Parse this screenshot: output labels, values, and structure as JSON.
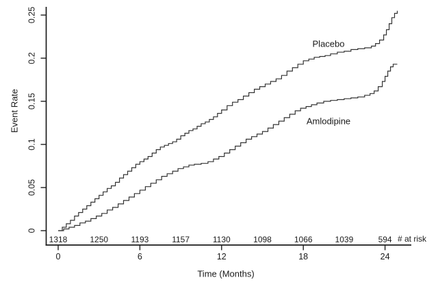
{
  "chart_data": {
    "type": "line",
    "subtype": "kaplan-meier-step",
    "title": "",
    "xlabel": "Time (Months)",
    "ylabel": "Event Rate",
    "xlim": [
      0,
      25.5
    ],
    "ylim": [
      0,
      0.26
    ],
    "x_ticks": [
      0,
      6,
      12,
      18,
      24
    ],
    "x_tick_labels": [
      "0",
      "6",
      "12",
      "18",
      "24"
    ],
    "y_ticks": [
      0,
      0.05,
      0.1,
      0.15,
      0.2,
      0.25
    ],
    "y_tick_labels": [
      "0",
      "0.05",
      "0.1",
      "0.15",
      "0.2",
      "0.25"
    ],
    "grid": false,
    "legend_position": "inline-annotations",
    "line_color": "#333333",
    "axis_color": "#1c1c1c",
    "series": [
      {
        "name": "Placebo",
        "label": {
          "text": "Placebo",
          "x": 19.85,
          "y": 0.2165
        },
        "points": [
          [
            0,
            0
          ],
          [
            0.3,
            0.004
          ],
          [
            0.6,
            0.008
          ],
          [
            0.9,
            0.012
          ],
          [
            1.2,
            0.017
          ],
          [
            1.5,
            0.021
          ],
          [
            1.8,
            0.025
          ],
          [
            2.1,
            0.029
          ],
          [
            2.4,
            0.033
          ],
          [
            2.7,
            0.037
          ],
          [
            3.0,
            0.041
          ],
          [
            3.3,
            0.045
          ],
          [
            3.6,
            0.049
          ],
          [
            3.9,
            0.052
          ],
          [
            4.2,
            0.056
          ],
          [
            4.5,
            0.061
          ],
          [
            4.8,
            0.065
          ],
          [
            5.1,
            0.069
          ],
          [
            5.4,
            0.073
          ],
          [
            5.7,
            0.077
          ],
          [
            6.0,
            0.08
          ],
          [
            6.3,
            0.083
          ],
          [
            6.6,
            0.086
          ],
          [
            6.9,
            0.09
          ],
          [
            7.2,
            0.094
          ],
          [
            7.5,
            0.097
          ],
          [
            7.8,
            0.099
          ],
          [
            8.1,
            0.101
          ],
          [
            8.4,
            0.103
          ],
          [
            8.7,
            0.106
          ],
          [
            9.0,
            0.11
          ],
          [
            9.3,
            0.113
          ],
          [
            9.6,
            0.116
          ],
          [
            9.9,
            0.118
          ],
          [
            10.2,
            0.121
          ],
          [
            10.5,
            0.124
          ],
          [
            10.8,
            0.126
          ],
          [
            11.1,
            0.129
          ],
          [
            11.4,
            0.132
          ],
          [
            11.7,
            0.136
          ],
          [
            12.0,
            0.14
          ],
          [
            12.4,
            0.145
          ],
          [
            12.8,
            0.149
          ],
          [
            13.2,
            0.152
          ],
          [
            13.6,
            0.156
          ],
          [
            14.0,
            0.16
          ],
          [
            14.4,
            0.164
          ],
          [
            14.8,
            0.167
          ],
          [
            15.2,
            0.17
          ],
          [
            15.6,
            0.173
          ],
          [
            16.0,
            0.176
          ],
          [
            16.4,
            0.18
          ],
          [
            16.8,
            0.185
          ],
          [
            17.2,
            0.189
          ],
          [
            17.6,
            0.193
          ],
          [
            18.0,
            0.197
          ],
          [
            18.4,
            0.199
          ],
          [
            18.8,
            0.201
          ],
          [
            19.2,
            0.202
          ],
          [
            19.6,
            0.203
          ],
          [
            20.0,
            0.205
          ],
          [
            20.5,
            0.207
          ],
          [
            21.0,
            0.208
          ],
          [
            21.5,
            0.21
          ],
          [
            22.0,
            0.211
          ],
          [
            22.5,
            0.212
          ],
          [
            23.0,
            0.214
          ],
          [
            23.3,
            0.217
          ],
          [
            23.6,
            0.221
          ],
          [
            23.9,
            0.227
          ],
          [
            24.1,
            0.233
          ],
          [
            24.3,
            0.24
          ],
          [
            24.5,
            0.247
          ],
          [
            24.7,
            0.252
          ],
          [
            24.9,
            0.255
          ]
        ]
      },
      {
        "name": "Amlodipine",
        "label": {
          "text": "Amlodipine",
          "x": 19.85,
          "y": 0.127
        },
        "points": [
          [
            0,
            0
          ],
          [
            0.4,
            0.002
          ],
          [
            0.8,
            0.004
          ],
          [
            1.2,
            0.006
          ],
          [
            1.6,
            0.009
          ],
          [
            2.0,
            0.011
          ],
          [
            2.4,
            0.014
          ],
          [
            2.8,
            0.017
          ],
          [
            3.2,
            0.02
          ],
          [
            3.6,
            0.024
          ],
          [
            4.0,
            0.027
          ],
          [
            4.4,
            0.031
          ],
          [
            4.8,
            0.035
          ],
          [
            5.2,
            0.039
          ],
          [
            5.6,
            0.043
          ],
          [
            6.0,
            0.047
          ],
          [
            6.4,
            0.051
          ],
          [
            6.8,
            0.055
          ],
          [
            7.2,
            0.059
          ],
          [
            7.6,
            0.063
          ],
          [
            8.0,
            0.066
          ],
          [
            8.4,
            0.069
          ],
          [
            8.8,
            0.072
          ],
          [
            9.2,
            0.074
          ],
          [
            9.6,
            0.076
          ],
          [
            10.0,
            0.077
          ],
          [
            10.5,
            0.078
          ],
          [
            11.0,
            0.08
          ],
          [
            11.4,
            0.083
          ],
          [
            11.8,
            0.086
          ],
          [
            12.2,
            0.09
          ],
          [
            12.6,
            0.094
          ],
          [
            13.0,
            0.098
          ],
          [
            13.4,
            0.102
          ],
          [
            13.8,
            0.106
          ],
          [
            14.2,
            0.109
          ],
          [
            14.6,
            0.112
          ],
          [
            15.0,
            0.115
          ],
          [
            15.4,
            0.119
          ],
          [
            15.8,
            0.123
          ],
          [
            16.2,
            0.127
          ],
          [
            16.6,
            0.131
          ],
          [
            17.0,
            0.135
          ],
          [
            17.4,
            0.139
          ],
          [
            17.8,
            0.142
          ],
          [
            18.2,
            0.144
          ],
          [
            18.6,
            0.146
          ],
          [
            19.0,
            0.148
          ],
          [
            19.5,
            0.15
          ],
          [
            20.0,
            0.151
          ],
          [
            20.5,
            0.152
          ],
          [
            21.0,
            0.153
          ],
          [
            21.5,
            0.154
          ],
          [
            22.0,
            0.155
          ],
          [
            22.5,
            0.157
          ],
          [
            22.9,
            0.159
          ],
          [
            23.2,
            0.162
          ],
          [
            23.5,
            0.167
          ],
          [
            23.8,
            0.173
          ],
          [
            24.0,
            0.179
          ],
          [
            24.2,
            0.185
          ],
          [
            24.4,
            0.19
          ],
          [
            24.6,
            0.193
          ],
          [
            24.9,
            0.193
          ]
        ]
      }
    ],
    "at_risk": {
      "label": "# at risk",
      "months": [
        0,
        3,
        6,
        9,
        12,
        15,
        18,
        21,
        24
      ],
      "counts": [
        1318,
        1250,
        1193,
        1157,
        1130,
        1098,
        1066,
        1039,
        594
      ]
    }
  }
}
